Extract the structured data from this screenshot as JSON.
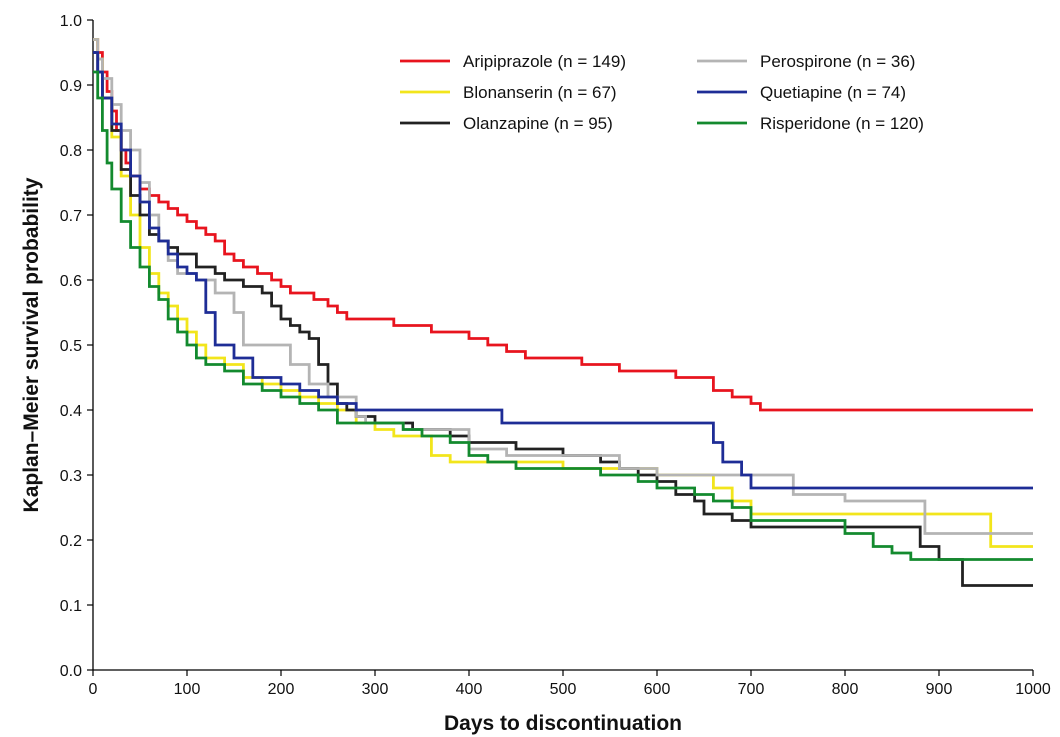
{
  "chart_data": {
    "type": "line",
    "subtype": "step",
    "title": "",
    "xlabel": "Days to discontinuation",
    "ylabel": "Kaplan–Meier survival probability",
    "xlim": [
      0,
      1000
    ],
    "ylim": [
      0.0,
      1.0
    ],
    "xticks": [
      "0",
      "100",
      "200",
      "300",
      "400",
      "500",
      "600",
      "700",
      "800",
      "900",
      "1000"
    ],
    "yticks": [
      "0.0",
      "0.1",
      "0.2",
      "0.3",
      "0.4",
      "0.5",
      "0.6",
      "0.7",
      "0.8",
      "0.9",
      "1.0"
    ],
    "grid": false,
    "legend_position": "top-right",
    "series": [
      {
        "name": "Aripiprazole (n = 149)",
        "color": "#e8141e",
        "points": [
          [
            0,
            0.97
          ],
          [
            5,
            0.95
          ],
          [
            10,
            0.92
          ],
          [
            15,
            0.89
          ],
          [
            20,
            0.86
          ],
          [
            25,
            0.83
          ],
          [
            30,
            0.8
          ],
          [
            35,
            0.78
          ],
          [
            40,
            0.76
          ],
          [
            50,
            0.74
          ],
          [
            60,
            0.73
          ],
          [
            70,
            0.72
          ],
          [
            80,
            0.71
          ],
          [
            90,
            0.7
          ],
          [
            100,
            0.69
          ],
          [
            110,
            0.68
          ],
          [
            120,
            0.67
          ],
          [
            130,
            0.66
          ],
          [
            140,
            0.64
          ],
          [
            150,
            0.63
          ],
          [
            160,
            0.62
          ],
          [
            175,
            0.61
          ],
          [
            190,
            0.6
          ],
          [
            200,
            0.59
          ],
          [
            210,
            0.58
          ],
          [
            225,
            0.58
          ],
          [
            235,
            0.57
          ],
          [
            250,
            0.56
          ],
          [
            260,
            0.55
          ],
          [
            270,
            0.54
          ],
          [
            280,
            0.54
          ],
          [
            300,
            0.54
          ],
          [
            320,
            0.53
          ],
          [
            340,
            0.53
          ],
          [
            360,
            0.52
          ],
          [
            380,
            0.52
          ],
          [
            400,
            0.51
          ],
          [
            420,
            0.5
          ],
          [
            440,
            0.49
          ],
          [
            460,
            0.48
          ],
          [
            480,
            0.48
          ],
          [
            500,
            0.48
          ],
          [
            520,
            0.47
          ],
          [
            540,
            0.47
          ],
          [
            560,
            0.46
          ],
          [
            580,
            0.46
          ],
          [
            600,
            0.46
          ],
          [
            620,
            0.45
          ],
          [
            640,
            0.45
          ],
          [
            660,
            0.43
          ],
          [
            680,
            0.42
          ],
          [
            700,
            0.41
          ],
          [
            710,
            0.4
          ],
          [
            800,
            0.4
          ],
          [
            900,
            0.4
          ],
          [
            1000,
            0.4
          ]
        ]
      },
      {
        "name": "Blonanserin (n = 67)",
        "color": "#f2e51b",
        "points": [
          [
            0,
            0.97
          ],
          [
            5,
            0.94
          ],
          [
            10,
            0.88
          ],
          [
            20,
            0.82
          ],
          [
            30,
            0.76
          ],
          [
            40,
            0.7
          ],
          [
            50,
            0.65
          ],
          [
            60,
            0.61
          ],
          [
            70,
            0.58
          ],
          [
            80,
            0.56
          ],
          [
            90,
            0.54
          ],
          [
            100,
            0.52
          ],
          [
            110,
            0.5
          ],
          [
            120,
            0.48
          ],
          [
            140,
            0.47
          ],
          [
            160,
            0.45
          ],
          [
            180,
            0.44
          ],
          [
            200,
            0.43
          ],
          [
            220,
            0.42
          ],
          [
            240,
            0.41
          ],
          [
            260,
            0.4
          ],
          [
            280,
            0.38
          ],
          [
            300,
            0.37
          ],
          [
            320,
            0.36
          ],
          [
            340,
            0.36
          ],
          [
            360,
            0.33
          ],
          [
            380,
            0.32
          ],
          [
            400,
            0.32
          ],
          [
            450,
            0.32
          ],
          [
            500,
            0.31
          ],
          [
            540,
            0.31
          ],
          [
            560,
            0.31
          ],
          [
            600,
            0.3
          ],
          [
            640,
            0.3
          ],
          [
            660,
            0.28
          ],
          [
            680,
            0.26
          ],
          [
            700,
            0.24
          ],
          [
            750,
            0.24
          ],
          [
            800,
            0.24
          ],
          [
            900,
            0.24
          ],
          [
            955,
            0.19
          ],
          [
            1000,
            0.19
          ]
        ]
      },
      {
        "name": "Olanzapine (n = 95)",
        "color": "#222222",
        "points": [
          [
            0,
            0.95
          ],
          [
            5,
            0.92
          ],
          [
            10,
            0.88
          ],
          [
            20,
            0.83
          ],
          [
            30,
            0.77
          ],
          [
            40,
            0.73
          ],
          [
            50,
            0.7
          ],
          [
            60,
            0.67
          ],
          [
            70,
            0.66
          ],
          [
            80,
            0.65
          ],
          [
            90,
            0.64
          ],
          [
            100,
            0.64
          ],
          [
            110,
            0.62
          ],
          [
            120,
            0.62
          ],
          [
            130,
            0.61
          ],
          [
            140,
            0.6
          ],
          [
            150,
            0.6
          ],
          [
            160,
            0.59
          ],
          [
            180,
            0.58
          ],
          [
            190,
            0.56
          ],
          [
            200,
            0.54
          ],
          [
            210,
            0.53
          ],
          [
            220,
            0.52
          ],
          [
            230,
            0.51
          ],
          [
            240,
            0.47
          ],
          [
            250,
            0.44
          ],
          [
            260,
            0.41
          ],
          [
            270,
            0.4
          ],
          [
            280,
            0.39
          ],
          [
            300,
            0.38
          ],
          [
            320,
            0.38
          ],
          [
            340,
            0.37
          ],
          [
            360,
            0.37
          ],
          [
            380,
            0.36
          ],
          [
            400,
            0.35
          ],
          [
            420,
            0.35
          ],
          [
            450,
            0.34
          ],
          [
            480,
            0.34
          ],
          [
            500,
            0.33
          ],
          [
            520,
            0.33
          ],
          [
            540,
            0.32
          ],
          [
            560,
            0.31
          ],
          [
            580,
            0.3
          ],
          [
            600,
            0.29
          ],
          [
            620,
            0.27
          ],
          [
            640,
            0.26
          ],
          [
            650,
            0.24
          ],
          [
            660,
            0.24
          ],
          [
            680,
            0.23
          ],
          [
            700,
            0.22
          ],
          [
            750,
            0.22
          ],
          [
            800,
            0.22
          ],
          [
            880,
            0.19
          ],
          [
            900,
            0.17
          ],
          [
            925,
            0.13
          ],
          [
            1000,
            0.13
          ]
        ]
      },
      {
        "name": "Perospirone (n = 36)",
        "color": "#b4b4b4",
        "points": [
          [
            0,
            0.97
          ],
          [
            5,
            0.94
          ],
          [
            10,
            0.91
          ],
          [
            20,
            0.87
          ],
          [
            30,
            0.83
          ],
          [
            40,
            0.8
          ],
          [
            50,
            0.75
          ],
          [
            60,
            0.7
          ],
          [
            70,
            0.66
          ],
          [
            80,
            0.63
          ],
          [
            90,
            0.61
          ],
          [
            100,
            0.61
          ],
          [
            110,
            0.6
          ],
          [
            130,
            0.58
          ],
          [
            150,
            0.55
          ],
          [
            160,
            0.5
          ],
          [
            200,
            0.5
          ],
          [
            210,
            0.47
          ],
          [
            230,
            0.44
          ],
          [
            250,
            0.42
          ],
          [
            260,
            0.42
          ],
          [
            280,
            0.39
          ],
          [
            290,
            0.38
          ],
          [
            300,
            0.38
          ],
          [
            330,
            0.37
          ],
          [
            360,
            0.37
          ],
          [
            400,
            0.34
          ],
          [
            440,
            0.33
          ],
          [
            500,
            0.33
          ],
          [
            540,
            0.33
          ],
          [
            560,
            0.31
          ],
          [
            600,
            0.3
          ],
          [
            700,
            0.3
          ],
          [
            745,
            0.27
          ],
          [
            800,
            0.26
          ],
          [
            850,
            0.26
          ],
          [
            885,
            0.21
          ],
          [
            900,
            0.21
          ],
          [
            1000,
            0.21
          ]
        ]
      },
      {
        "name": "Quetiapine (n = 74)",
        "color": "#1e2d96",
        "points": [
          [
            0,
            0.95
          ],
          [
            5,
            0.92
          ],
          [
            10,
            0.88
          ],
          [
            20,
            0.84
          ],
          [
            30,
            0.8
          ],
          [
            40,
            0.76
          ],
          [
            50,
            0.72
          ],
          [
            60,
            0.68
          ],
          [
            70,
            0.66
          ],
          [
            80,
            0.64
          ],
          [
            90,
            0.62
          ],
          [
            100,
            0.61
          ],
          [
            110,
            0.6
          ],
          [
            120,
            0.55
          ],
          [
            130,
            0.5
          ],
          [
            150,
            0.48
          ],
          [
            170,
            0.45
          ],
          [
            200,
            0.44
          ],
          [
            220,
            0.43
          ],
          [
            240,
            0.42
          ],
          [
            260,
            0.41
          ],
          [
            280,
            0.4
          ],
          [
            300,
            0.4
          ],
          [
            350,
            0.4
          ],
          [
            400,
            0.4
          ],
          [
            435,
            0.38
          ],
          [
            500,
            0.38
          ],
          [
            600,
            0.38
          ],
          [
            650,
            0.38
          ],
          [
            660,
            0.35
          ],
          [
            670,
            0.32
          ],
          [
            690,
            0.3
          ],
          [
            700,
            0.28
          ],
          [
            800,
            0.28
          ],
          [
            900,
            0.28
          ],
          [
            1000,
            0.28
          ]
        ]
      },
      {
        "name": "Risperidone (n = 120)",
        "color": "#138a2e",
        "points": [
          [
            0,
            0.92
          ],
          [
            5,
            0.88
          ],
          [
            10,
            0.83
          ],
          [
            15,
            0.78
          ],
          [
            20,
            0.74
          ],
          [
            30,
            0.69
          ],
          [
            40,
            0.65
          ],
          [
            50,
            0.62
          ],
          [
            60,
            0.59
          ],
          [
            70,
            0.57
          ],
          [
            80,
            0.54
          ],
          [
            90,
            0.52
          ],
          [
            100,
            0.5
          ],
          [
            110,
            0.48
          ],
          [
            120,
            0.47
          ],
          [
            140,
            0.46
          ],
          [
            160,
            0.44
          ],
          [
            180,
            0.43
          ],
          [
            200,
            0.42
          ],
          [
            220,
            0.41
          ],
          [
            240,
            0.4
          ],
          [
            260,
            0.38
          ],
          [
            280,
            0.38
          ],
          [
            300,
            0.38
          ],
          [
            330,
            0.37
          ],
          [
            350,
            0.36
          ],
          [
            380,
            0.35
          ],
          [
            400,
            0.33
          ],
          [
            420,
            0.32
          ],
          [
            450,
            0.31
          ],
          [
            500,
            0.31
          ],
          [
            540,
            0.3
          ],
          [
            580,
            0.29
          ],
          [
            600,
            0.28
          ],
          [
            640,
            0.27
          ],
          [
            660,
            0.26
          ],
          [
            680,
            0.25
          ],
          [
            700,
            0.23
          ],
          [
            750,
            0.23
          ],
          [
            800,
            0.21
          ],
          [
            830,
            0.19
          ],
          [
            850,
            0.18
          ],
          [
            870,
            0.17
          ],
          [
            900,
            0.17
          ],
          [
            1000,
            0.17
          ]
        ]
      }
    ]
  }
}
